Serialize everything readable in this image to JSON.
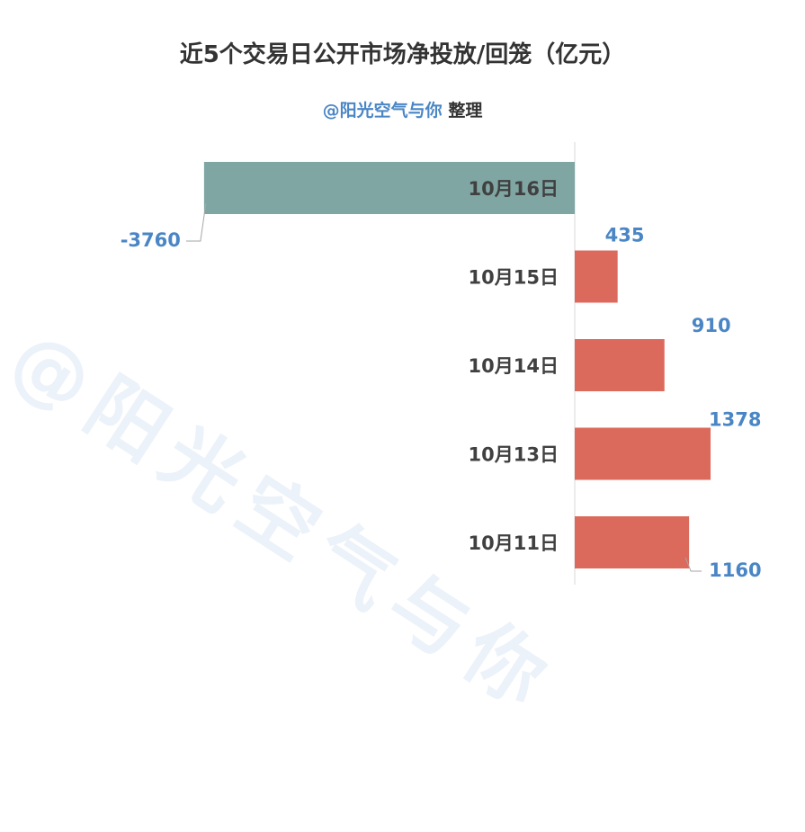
{
  "watermark": "@阳光空气与你",
  "chart_data": {
    "type": "bar",
    "orientation": "horizontal",
    "title": "近5个交易日公开市场净投放/回笼（亿元）",
    "subtitle_handle": "@阳光空气与你",
    "subtitle_suffix": "整理",
    "categories": [
      "10月16日",
      "10月15日",
      "10月14日",
      "10月13日",
      "10月11日"
    ],
    "values": [
      -3760,
      435,
      910,
      1378,
      1160
    ],
    "colors": {
      "negative": "#7fa6a3",
      "positive": "#dc6a5c",
      "label": "#4a86c5",
      "category": "#404040",
      "axis": "#d9d9d9"
    }
  }
}
